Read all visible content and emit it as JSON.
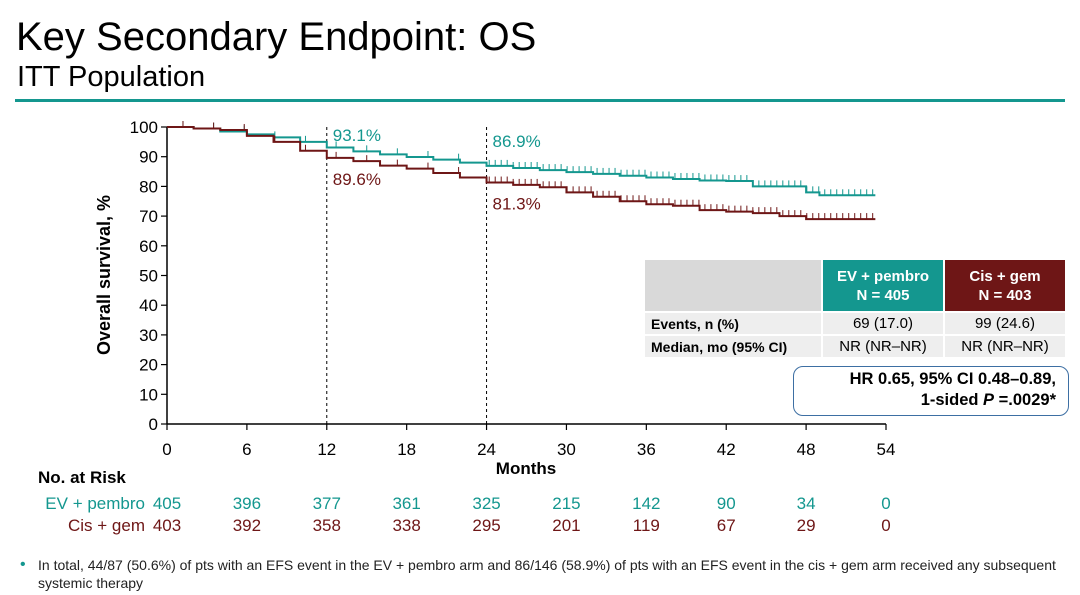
{
  "header": {
    "title": "Key Secondary Endpoint: OS",
    "subtitle": "ITT Population"
  },
  "colors": {
    "ev": "#14978f",
    "cis": "#6e1616",
    "accent": "#14978f",
    "hr_border": "#3d6fa3"
  },
  "chart_data": {
    "type": "line",
    "ylabel": "Overall survival, %",
    "xlabel": "Months",
    "xlim": [
      0,
      54
    ],
    "ylim": [
      0,
      100
    ],
    "x_ticks": [
      0,
      6,
      12,
      18,
      24,
      30,
      36,
      42,
      48,
      54
    ],
    "y_ticks": [
      0,
      10,
      20,
      30,
      40,
      50,
      60,
      70,
      80,
      90,
      100
    ],
    "reference_lines_x": [
      12,
      24
    ],
    "series": [
      {
        "name": "EV + pembro",
        "color": "#14978f",
        "points": [
          [
            0,
            100
          ],
          [
            2,
            99.5
          ],
          [
            4,
            98.5
          ],
          [
            6,
            97.5
          ],
          [
            8,
            96.5
          ],
          [
            10,
            95
          ],
          [
            12,
            93.1
          ],
          [
            14,
            91.8
          ],
          [
            16,
            90.8
          ],
          [
            18,
            89.9
          ],
          [
            20,
            89
          ],
          [
            22,
            88
          ],
          [
            24,
            86.9
          ],
          [
            26,
            86.2
          ],
          [
            28,
            85.5
          ],
          [
            30,
            84.8
          ],
          [
            32,
            84.2
          ],
          [
            34,
            83.6
          ],
          [
            36,
            83
          ],
          [
            38,
            82.5
          ],
          [
            40,
            82
          ],
          [
            42,
            81.8
          ],
          [
            44,
            80
          ],
          [
            46,
            80
          ],
          [
            48,
            78
          ],
          [
            49,
            77
          ],
          [
            50,
            77
          ],
          [
            52,
            77
          ],
          [
            53.2,
            77
          ]
        ]
      },
      {
        "name": "Cis + gem",
        "color": "#6e1616",
        "points": [
          [
            0,
            100
          ],
          [
            2,
            99.5
          ],
          [
            4,
            99
          ],
          [
            6,
            97
          ],
          [
            8,
            95
          ],
          [
            10,
            92
          ],
          [
            12,
            89.6
          ],
          [
            14,
            88.5
          ],
          [
            16,
            87
          ],
          [
            18,
            86
          ],
          [
            20,
            84.5
          ],
          [
            22,
            83
          ],
          [
            24,
            81.3
          ],
          [
            26,
            80.5
          ],
          [
            28,
            79.7
          ],
          [
            30,
            78
          ],
          [
            32,
            76.5
          ],
          [
            34,
            75
          ],
          [
            36,
            74
          ],
          [
            38,
            73.5
          ],
          [
            40,
            72
          ],
          [
            42,
            71.5
          ],
          [
            44,
            71
          ],
          [
            46,
            70
          ],
          [
            48,
            69
          ],
          [
            50,
            69
          ],
          [
            52,
            69
          ],
          [
            53.2,
            69
          ]
        ]
      }
    ],
    "annotations": [
      {
        "text": "93.1%",
        "x": 12,
        "series": "EV + pembro"
      },
      {
        "text": "86.9%",
        "x": 24,
        "series": "EV + pembro"
      },
      {
        "text": "89.6%",
        "x": 12,
        "series": "Cis + gem"
      },
      {
        "text": "81.3%",
        "x": 24,
        "series": "Cis + gem"
      }
    ]
  },
  "risk_table": {
    "title": "No. at Risk",
    "rows": [
      {
        "label": "EV + pembro",
        "values": [
          "405",
          "396",
          "377",
          "361",
          "325",
          "215",
          "142",
          "90",
          "34",
          "0"
        ]
      },
      {
        "label": "Cis + gem",
        "values": [
          "403",
          "392",
          "358",
          "338",
          "295",
          "201",
          "119",
          "67",
          "29",
          "0"
        ]
      }
    ]
  },
  "summary_table": {
    "col1": {
      "name": "EV + pembro",
      "n": "N = 405"
    },
    "col2": {
      "name": "Cis + gem",
      "n": "N = 403"
    },
    "rows": [
      {
        "label": "Events, n (%)",
        "v1": "69 (17.0)",
        "v2": "99 (24.6)"
      },
      {
        "label": "Median, mo (95% CI)",
        "v1": "NR (NR–NR)",
        "v2": "NR (NR–NR)"
      }
    ]
  },
  "hr_box": {
    "line1": "HR 0.65, 95% CI 0.48–0.89,",
    "line2_prefix": "1-sided ",
    "line2_p": "P",
    "line2_suffix": " =.0029*"
  },
  "footnote": "In total, 44/87 (50.6%) of pts with an EFS event in the EV + pembro arm and 86/146 (58.9%) of pts with an EFS event in the cis + gem arm received any subsequent systemic therapy"
}
